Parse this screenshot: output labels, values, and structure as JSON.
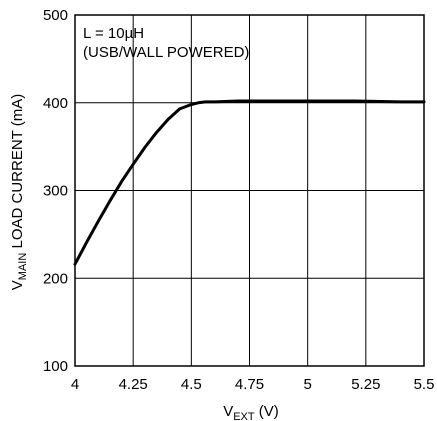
{
  "chart_data": {
    "type": "line",
    "title": "",
    "xlabel": {
      "main": "V",
      "sub": "EXT",
      "unit": " (V)"
    },
    "ylabel": {
      "main": "V",
      "sub": "MAIN",
      "rest": " LOAD CURRENT (mA)"
    },
    "xlim": [
      4,
      5.5
    ],
    "ylim": [
      100,
      500
    ],
    "grid": true,
    "x_ticks": [
      4,
      4.25,
      4.5,
      4.75,
      5,
      5.25,
      5.5
    ],
    "x_tick_labels": [
      "4",
      "4.25",
      "4.5",
      "4.75",
      "5",
      "5.25",
      "5.5"
    ],
    "y_ticks": [
      100,
      200,
      300,
      400,
      500
    ],
    "y_tick_labels": [
      "100",
      "200",
      "300",
      "400",
      "500"
    ],
    "annotations": [
      "L = 10µH",
      "(USB/WALL POWERED)"
    ],
    "series": [
      {
        "x": [
          4.0,
          4.05,
          4.1,
          4.15,
          4.2,
          4.25,
          4.3,
          4.35,
          4.4,
          4.45,
          4.5,
          4.53,
          4.56,
          4.6,
          4.7,
          4.8,
          5.0,
          5.2,
          5.4,
          5.5
        ],
        "values": [
          216,
          241,
          265,
          288,
          310,
          330,
          349,
          366,
          381,
          393,
          398,
          400,
          401,
          401,
          402,
          402,
          402,
          402,
          401,
          401
        ]
      }
    ]
  }
}
